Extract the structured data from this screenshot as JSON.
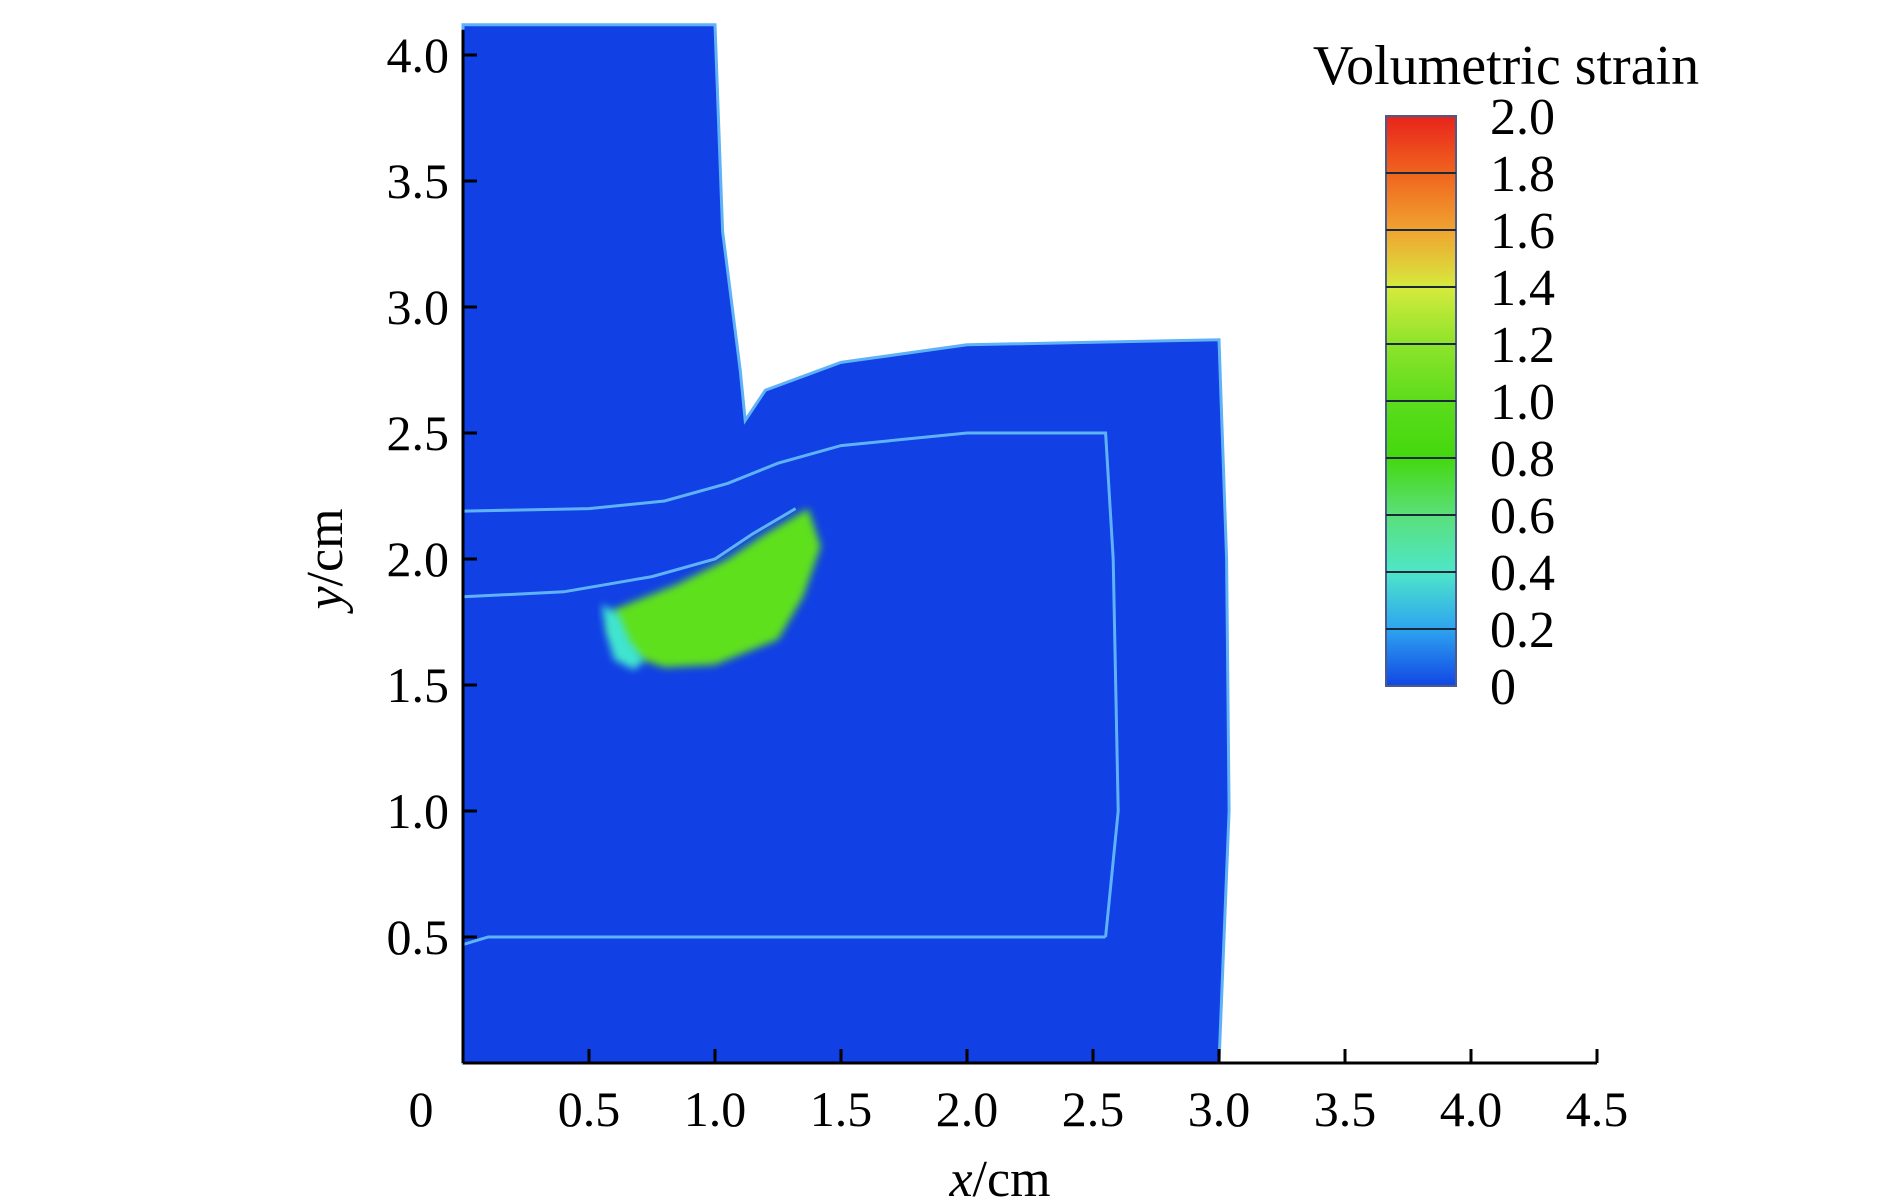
{
  "chart_data": {
    "type": "heatmap",
    "title": "",
    "xlabel_var": "x",
    "xlabel_unit": "/cm",
    "ylabel_var": "y",
    "ylabel_unit": "/cm",
    "xlim": [
      0,
      4.5
    ],
    "ylim": [
      0,
      4.1
    ],
    "x_ticks": [
      0,
      0.5,
      1.0,
      1.5,
      2.0,
      2.5,
      3.0,
      3.5,
      4.0,
      4.5
    ],
    "x_tick_labels": [
      "0",
      "0.5",
      "1.0",
      "1.5",
      "2.0",
      "2.5",
      "3.0",
      "3.5",
      "4.0",
      "4.5"
    ],
    "y_ticks": [
      0.5,
      1.0,
      1.5,
      2.0,
      2.5,
      3.0,
      3.5,
      4.0
    ],
    "y_tick_labels": [
      "0.5",
      "1.0",
      "1.5",
      "2.0",
      "2.5",
      "3.0",
      "3.5",
      "4.0"
    ],
    "grid": false,
    "legend": {
      "title": "Volumetric strain",
      "position": "top-right",
      "levels": [
        2.0,
        1.8,
        1.6,
        1.4,
        1.2,
        1.0,
        0.8,
        0.6,
        0.4,
        0.2,
        0
      ],
      "level_labels": [
        "2.0",
        "1.8",
        "1.6",
        "1.4",
        "1.2",
        "1.0",
        "0.8",
        "0.6",
        "0.4",
        "0.2",
        "0"
      ],
      "band_colors": [
        "#e8231c",
        "#f0641e",
        "#f0a330",
        "#d6ea3e",
        "#8ee42a",
        "#5cdc1c",
        "#44d80e",
        "#5ae07a",
        "#4ee6c8",
        "#2ea4f0",
        "#1146e4"
      ]
    },
    "domain": {
      "fill_color": "#1140e4",
      "edge_color": "#5fb2f7",
      "outline_upper_punch": [
        [
          0,
          4.12
        ],
        [
          1.0,
          4.12
        ],
        [
          1.03,
          3.3
        ],
        [
          1.1,
          2.75
        ],
        [
          1.12,
          2.55
        ]
      ],
      "outline_workpiece": [
        [
          1.12,
          2.55
        ],
        [
          1.2,
          2.67
        ],
        [
          1.5,
          2.78
        ],
        [
          2.0,
          2.85
        ],
        [
          2.5,
          2.86
        ],
        [
          3.0,
          2.87
        ],
        [
          3.03,
          2.0
        ],
        [
          3.04,
          1.0
        ],
        [
          3.0,
          0
        ]
      ],
      "inner_boundary_upper": [
        [
          0,
          2.19
        ],
        [
          0.5,
          2.2
        ],
        [
          0.8,
          2.23
        ],
        [
          1.05,
          2.3
        ],
        [
          1.25,
          2.38
        ],
        [
          1.5,
          2.45
        ],
        [
          2.0,
          2.5
        ],
        [
          2.55,
          2.5
        ],
        [
          2.58,
          2.0
        ],
        [
          2.6,
          1.0
        ],
        [
          2.55,
          0.5
        ]
      ],
      "inner_boundary_lower": [
        [
          0,
          1.85
        ],
        [
          0.4,
          1.87
        ],
        [
          0.75,
          1.93
        ],
        [
          1.0,
          2.0
        ],
        [
          1.15,
          2.1
        ],
        [
          1.32,
          2.2
        ]
      ],
      "inner_bottom_line": [
        [
          0,
          0.47
        ],
        [
          0.1,
          0.5
        ],
        [
          2.55,
          0.5
        ]
      ]
    },
    "regions": [
      {
        "value_range": [
          1.0,
          1.4
        ],
        "color": "#5ee01c",
        "polygon": [
          [
            0.6,
            1.8
          ],
          [
            0.85,
            1.9
          ],
          [
            1.05,
            2.0
          ],
          [
            1.2,
            2.1
          ],
          [
            1.37,
            2.2
          ],
          [
            1.42,
            2.05
          ],
          [
            1.35,
            1.85
          ],
          [
            1.25,
            1.68
          ],
          [
            1.0,
            1.58
          ],
          [
            0.8,
            1.57
          ],
          [
            0.65,
            1.62
          ],
          [
            0.58,
            1.72
          ]
        ]
      },
      {
        "value_range": [
          0.2,
          0.6
        ],
        "color": "#3fe4d0",
        "polygon": [
          [
            0.55,
            1.82
          ],
          [
            0.62,
            1.78
          ],
          [
            0.66,
            1.68
          ],
          [
            0.72,
            1.6
          ],
          [
            0.68,
            1.56
          ],
          [
            0.6,
            1.6
          ],
          [
            0.57,
            1.7
          ]
        ]
      }
    ]
  }
}
